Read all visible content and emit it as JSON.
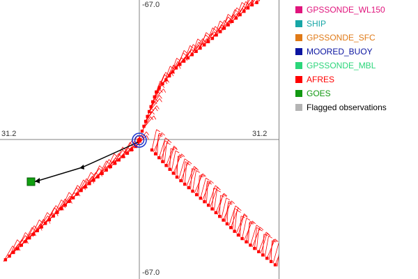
{
  "plot": {
    "axis_labels": {
      "top": "-67.0",
      "bottom": "-67.0",
      "left": "31.2",
      "right": "31.2"
    },
    "colors": {
      "axis": "#808080",
      "barb": "#ff0000",
      "point": "#ff0000",
      "track": "#000000",
      "center_ring": "#1a33cc",
      "goes_marker": "#10a010"
    }
  },
  "legend": {
    "items": [
      {
        "label": "GPSSONDE_WL150",
        "color": "#e0147c"
      },
      {
        "label": "SHIP",
        "color": "#17a6a6"
      },
      {
        "label": "GPSSONDE_SFC",
        "color": "#e07a17"
      },
      {
        "label": "MOORED_BUOY",
        "color": "#0a14a0"
      },
      {
        "label": "GPSSONDE_MBL",
        "color": "#2bd67a"
      },
      {
        "label": "AFRES",
        "color": "#ff0000"
      },
      {
        "label": "GOES",
        "color": "#129912"
      },
      {
        "label": "Flagged observations",
        "color": "#b4b4b4"
      }
    ]
  }
}
